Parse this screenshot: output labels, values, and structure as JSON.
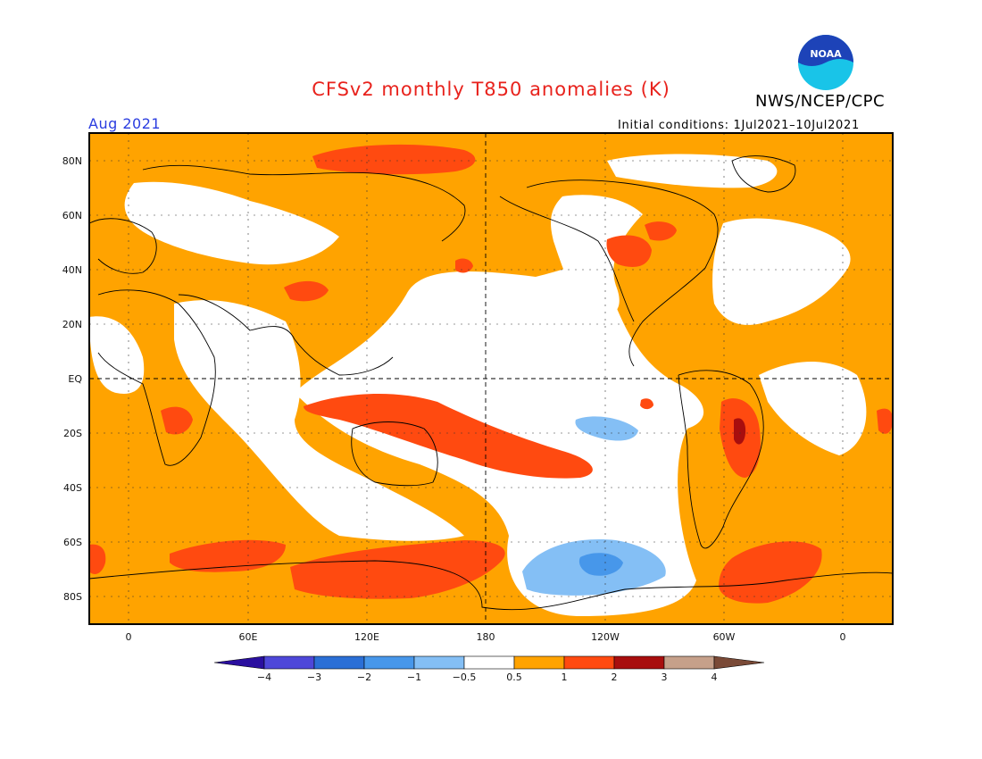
{
  "header": {
    "title": "CFSv2 monthly T850 anomalies (K)",
    "agency": "NWS/NCEP/CPC",
    "logo_text": "NOAA",
    "month": "Aug 2021",
    "initial_conditions": "Initial conditions: 1Jul2021–10Jul2021"
  },
  "map": {
    "lat_labels": [
      "80N",
      "60N",
      "40N",
      "20N",
      "EQ",
      "20S",
      "40S",
      "60S",
      "80S"
    ],
    "lon_labels": [
      "0",
      "60E",
      "120E",
      "180",
      "120W",
      "60W",
      "0"
    ]
  },
  "legend": {
    "labels": [
      "−4",
      "−3",
      "−2",
      "−1",
      "−0.5",
      "0.5",
      "1",
      "2",
      "3",
      "4"
    ],
    "colors": [
      "#2a0f9f",
      "#4e47d9",
      "#2b6fd6",
      "#4797ea",
      "#84bff5",
      "#ffffff",
      "#ffa300",
      "#ff4a10",
      "#a80e0e",
      "#c6a08a",
      "#7a4a37"
    ]
  }
}
